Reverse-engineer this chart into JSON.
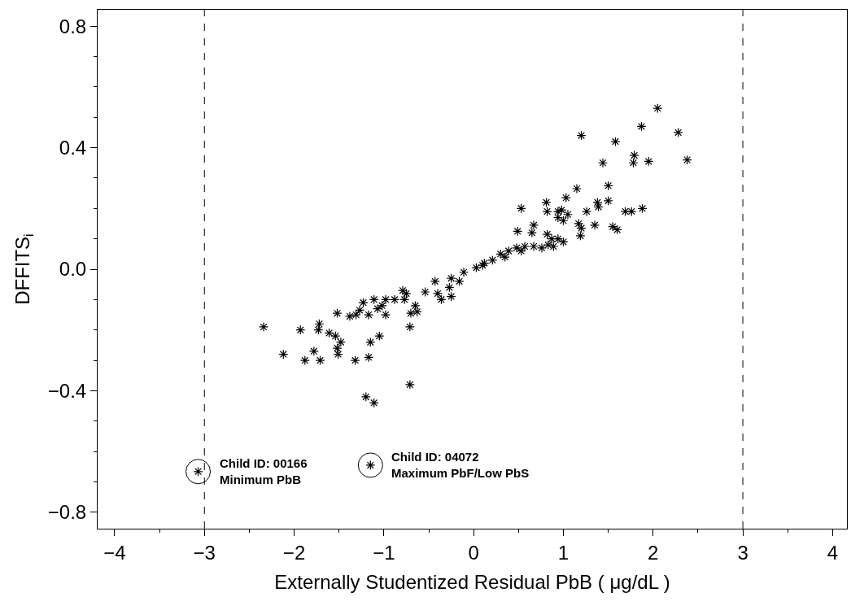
{
  "chart_data": {
    "type": "scatter",
    "xlabel": "Externally Studentized Residual PbB ( μg/dL )",
    "ylabel": "DFFITS$_{i}$",
    "xlim": [
      -4.19,
      4.16
    ],
    "ylim": [
      -0.854,
      0.854
    ],
    "xticks": [
      {
        "value": -4,
        "label": "−4"
      },
      {
        "value": -3,
        "label": "−3"
      },
      {
        "value": -2,
        "label": "−2"
      },
      {
        "value": -1,
        "label": "−1"
      },
      0,
      1,
      2,
      3,
      4
    ],
    "yticks": [
      {
        "value": -0.8,
        "label": "−0.8"
      },
      {
        "value": -0.4,
        "label": "−0.4"
      },
      {
        "value": 0,
        "label": "0.0"
      },
      0.4,
      0.8
    ],
    "marker": "cross",
    "series": [
      {
        "color": "#000000",
        "x": [
          -2.34,
          -2.12,
          -1.93,
          -1.88,
          -1.78,
          -1.72,
          -1.71,
          -1.73,
          -1.61,
          -1.54,
          -1.48,
          -1.52,
          -1.51,
          -1.52,
          -1.32,
          -1.38,
          -1.31,
          -1.27,
          -1.17,
          -1.17,
          -1.15,
          -1.05,
          -0.98,
          -1.23,
          -1.2,
          -1.11,
          -0.71,
          -0.71,
          -0.7,
          -0.63,
          -0.65,
          -0.77,
          -0.75,
          -1.07,
          -1.11,
          -1.02,
          -0.98,
          -0.88,
          -0.79,
          -0.54,
          -0.43,
          -0.36,
          -0.27,
          -0.25,
          -0.16,
          -0.4,
          -0.25,
          -0.11,
          0.03,
          0.12,
          0.21,
          0.3,
          0.39,
          0.48,
          0.57,
          0.67,
          0.76,
          0.1,
          0.35,
          0.53,
          2.05,
          1.87,
          2.28,
          1.2,
          1.58,
          1.79,
          1.78,
          1.95,
          1.44,
          1.5,
          1.15,
          1.03,
          0.81,
          1.5,
          1.38,
          1.39,
          0.53,
          0.82,
          0.98,
          0.94,
          1.05,
          1.26,
          1.69,
          1.76,
          1.88,
          0.94,
          1.0,
          0.67,
          1.17,
          1.35,
          1.2,
          1.55,
          1.6,
          0.49,
          0.65,
          1.19,
          0.82,
          0.87,
          0.94,
          1.0,
          0.83,
          0.89,
          2.38,
          -3.07,
          -1.15
        ],
        "values": [
          -0.19,
          -0.28,
          -0.2,
          -0.3,
          -0.27,
          -0.18,
          -0.3,
          -0.2,
          -0.21,
          -0.22,
          -0.24,
          -0.26,
          -0.28,
          -0.145,
          -0.3,
          -0.155,
          -0.15,
          -0.135,
          -0.15,
          -0.29,
          -0.24,
          -0.22,
          -0.15,
          -0.11,
          -0.42,
          -0.44,
          -0.38,
          -0.19,
          -0.145,
          -0.14,
          -0.12,
          -0.1,
          -0.08,
          -0.13,
          -0.1,
          -0.12,
          -0.1,
          -0.1,
          -0.07,
          -0.075,
          -0.04,
          -0.1,
          -0.06,
          -0.09,
          -0.04,
          -0.08,
          -0.03,
          -0.01,
          0.005,
          0.02,
          0.03,
          0.05,
          0.06,
          0.07,
          0.075,
          0.075,
          0.07,
          0.013,
          0.04,
          0.06,
          0.53,
          0.47,
          0.45,
          0.44,
          0.42,
          0.375,
          0.35,
          0.355,
          0.35,
          0.275,
          0.265,
          0.235,
          0.22,
          0.225,
          0.22,
          0.205,
          0.2,
          0.19,
          0.195,
          0.19,
          0.18,
          0.19,
          0.19,
          0.19,
          0.2,
          0.17,
          0.16,
          0.145,
          0.15,
          0.145,
          0.135,
          0.14,
          0.13,
          0.125,
          0.12,
          0.11,
          0.115,
          0.1,
          0.1,
          0.09,
          0.08,
          0.075,
          0.36,
          -0.666,
          -0.645
        ]
      }
    ],
    "ref_lines": [
      {
        "axis": "x",
        "value": -3,
        "line_style": "dashed",
        "color": "#000000"
      },
      {
        "axis": "x",
        "value": 3,
        "line_style": "dashed",
        "color": "#000000"
      }
    ],
    "annotations": [
      {
        "text": "Child ID: 00166\nMinimum PbB",
        "x": -3.07,
        "y": -0.666
      },
      {
        "text": "Child ID: 04072\nMaximum PbF/Low PbS",
        "x": -1.15,
        "y": -0.645
      }
    ]
  }
}
